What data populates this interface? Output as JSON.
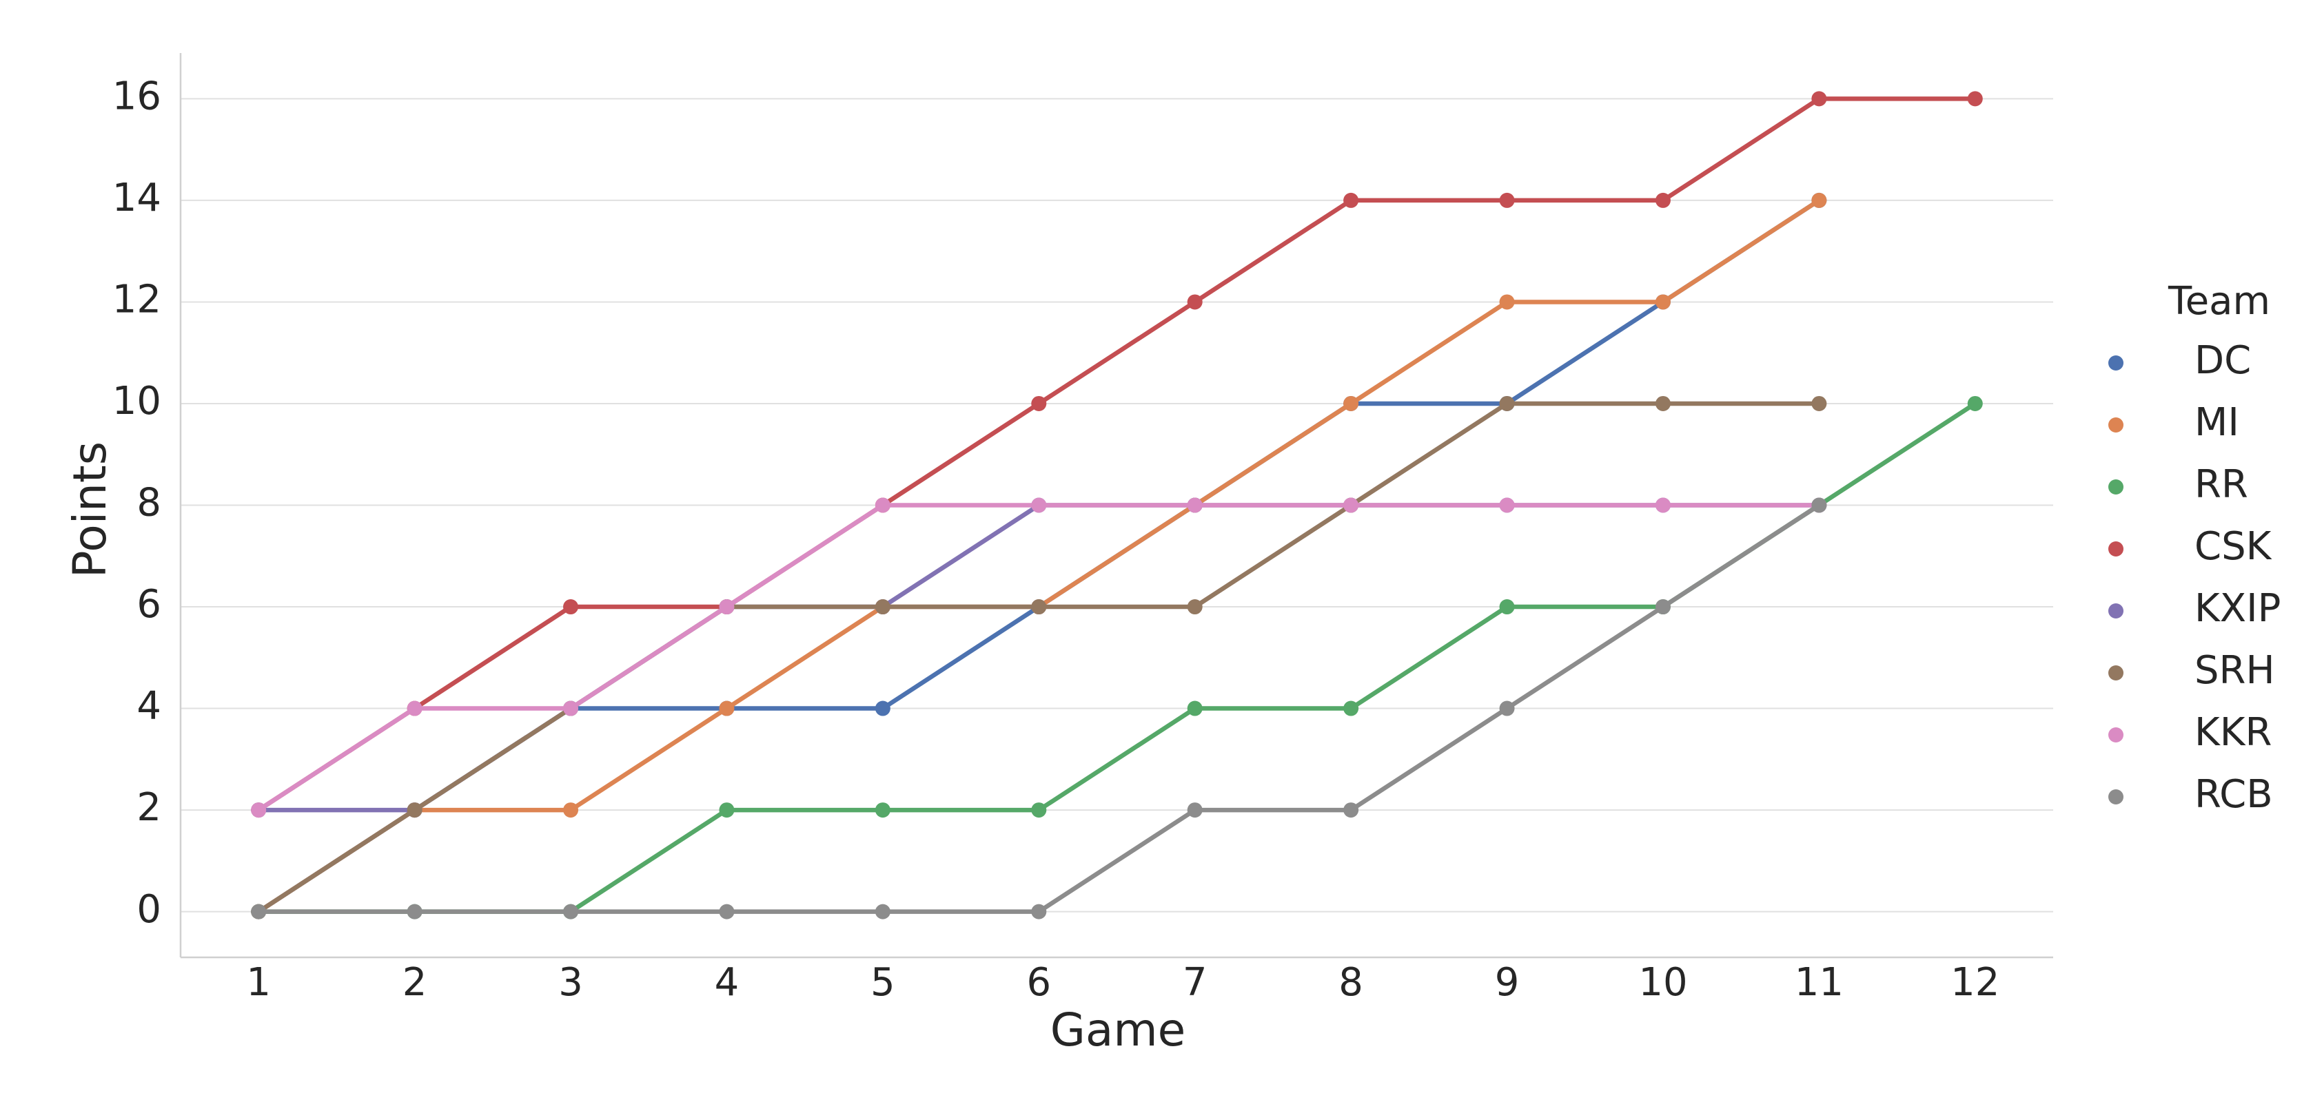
{
  "chart_data": {
    "type": "line",
    "x_label": "Game",
    "y_label": "Points",
    "legend_title": "Team",
    "categories": [
      1,
      2,
      3,
      4,
      5,
      6,
      7,
      8,
      9,
      10,
      11,
      12
    ],
    "series": [
      {
        "name": "DC",
        "color": "#4c72b0",
        "values": [
          0,
          2,
          4,
          4,
          4,
          6,
          8,
          10,
          10,
          12,
          14,
          null
        ]
      },
      {
        "name": "MI",
        "color": "#dd8452",
        "values": [
          0,
          2,
          2,
          4,
          6,
          6,
          8,
          10,
          12,
          12,
          14,
          null
        ]
      },
      {
        "name": "RR",
        "color": "#55a868",
        "values": [
          0,
          0,
          0,
          2,
          2,
          2,
          4,
          4,
          6,
          6,
          8,
          10
        ]
      },
      {
        "name": "CSK",
        "color": "#c44e52",
        "values": [
          2,
          4,
          6,
          6,
          8,
          10,
          12,
          14,
          14,
          14,
          16,
          16
        ]
      },
      {
        "name": "KXIP",
        "color": "#8172b3",
        "values": [
          2,
          2,
          4,
          6,
          6,
          8,
          8,
          8,
          8,
          8,
          8,
          null
        ]
      },
      {
        "name": "SRH",
        "color": "#937860",
        "values": [
          0,
          2,
          4,
          6,
          6,
          6,
          6,
          8,
          10,
          10,
          10,
          null
        ]
      },
      {
        "name": "KKR",
        "color": "#da8bc3",
        "values": [
          2,
          4,
          4,
          6,
          8,
          8,
          8,
          8,
          8,
          8,
          8,
          null
        ]
      },
      {
        "name": "RCB",
        "color": "#8c8c8c",
        "values": [
          0,
          0,
          0,
          0,
          0,
          0,
          2,
          2,
          4,
          6,
          8,
          null
        ]
      }
    ],
    "ylim": [
      -0.9,
      16.9
    ],
    "yticks": [
      0,
      2,
      4,
      6,
      8,
      10,
      12,
      14,
      16
    ],
    "grid": true,
    "legend": "right"
  }
}
